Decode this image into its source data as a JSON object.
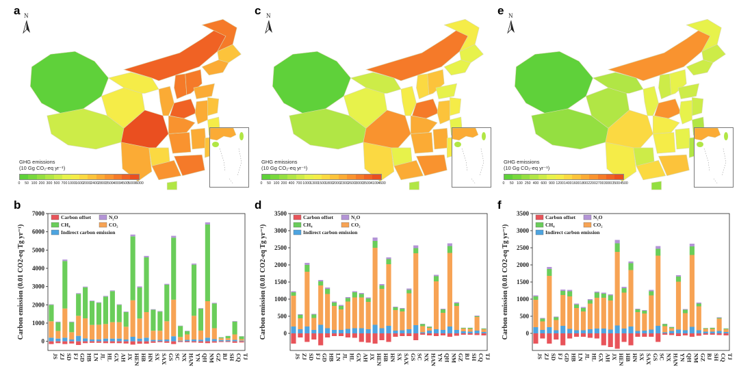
{
  "panels": {
    "a": "a",
    "b": "b",
    "c": "c",
    "d": "d",
    "e": "e",
    "f": "f"
  },
  "maps": [
    {
      "id": "a",
      "north_letter": "N",
      "legend_title_line1": "GHG emissions",
      "legend_title_line2": "(10 Gg  CO₂-eq  yr⁻¹)",
      "colorbar_ticks": [
        "0",
        "50",
        "100",
        "200",
        "300",
        "500",
        "700",
        "1000",
        "1600",
        "2000",
        "2400",
        "2800",
        "3500",
        "4000",
        "4500",
        "5000",
        "6000"
      ],
      "colorbar_colors": [
        "#5fd13a",
        "#78d83d",
        "#94df41",
        "#b1e645",
        "#cdec48",
        "#e7f24b",
        "#f5ec48",
        "#fbd942",
        "#fcc33b",
        "#fbab35",
        "#f9932f",
        "#f57a29",
        "#f06224",
        "#ea4f20"
      ]
    },
    {
      "id": "c",
      "north_letter": "N",
      "legend_title_line1": "GHG emissions",
      "legend_title_line2": "(10 Gg  CO₂-eq  yr⁻¹)",
      "colorbar_ticks": [
        "0",
        "50",
        "100",
        "200",
        "400",
        "700",
        "1000",
        "1300",
        "1500",
        "1800",
        "2000",
        "2300",
        "2600",
        "3000",
        "3500",
        "4100",
        "4600"
      ],
      "colorbar_colors": [
        "#5fd13a",
        "#78d83d",
        "#94df41",
        "#b1e645",
        "#cdec48",
        "#e7f24b",
        "#f5ec48",
        "#fbd942",
        "#fcc33b",
        "#fbab35",
        "#f9932f",
        "#f57a29",
        "#f06224",
        "#ea4f20"
      ]
    },
    {
      "id": "e",
      "north_letter": "N",
      "legend_title_line1": "GHG emissions",
      "legend_title_line2": "(10 Gg  CO₂-eq  yr⁻¹)",
      "colorbar_ticks": [
        "0",
        "50",
        "100",
        "250",
        "400",
        "600",
        "900",
        "1200",
        "1400",
        "1600",
        "1800",
        "2200",
        "2700",
        "3000",
        "3500",
        "4500"
      ],
      "colorbar_colors": [
        "#5fd13a",
        "#78d83d",
        "#94df41",
        "#b1e645",
        "#cdec48",
        "#e7f24b",
        "#f5ec48",
        "#fbd942",
        "#fcc33b",
        "#fbab35",
        "#f9932f",
        "#f57a29",
        "#f06224",
        "#ea4f20"
      ]
    }
  ],
  "legend": {
    "carbon_offset": "Carbon offset",
    "n2o": "N₂O",
    "ch4": "CH₄",
    "co2": "CO₂",
    "indirect": "Indirect carbon emission"
  },
  "colors": {
    "carbon_offset": "#e8545a",
    "n2o": "#b394d6",
    "ch4": "#6acd5a",
    "co2": "#f7a354",
    "indirect": "#4da4e0"
  },
  "chart_data": [
    {
      "type": "bar",
      "id": "b",
      "ylabel": "Carbon emission (0.01  CO2-eq Tg yr⁻¹)",
      "ylim": [
        -500,
        7000
      ],
      "yticks": [
        0,
        1000,
        2000,
        3000,
        4000,
        5000,
        6000,
        7000
      ],
      "categories": [
        "JS",
        "ZJ",
        "SD",
        "FJ",
        "GD",
        "HB",
        "LN",
        "JL",
        "HL",
        "GX",
        "AH",
        "JX",
        "HEN",
        "HB",
        "HN",
        "SX",
        "SAX",
        "GS",
        "SC",
        "NX",
        "HAN",
        "YN",
        "QH",
        "NM",
        "GZ",
        "BJ",
        "SH",
        "CQ",
        "TJ"
      ],
      "series": [
        {
          "name": "Indirect carbon emission",
          "values": [
            200,
            150,
            200,
            100,
            300,
            160,
            100,
            110,
            150,
            150,
            150,
            100,
            250,
            150,
            200,
            80,
            80,
            100,
            280,
            40,
            80,
            100,
            90,
            200,
            120,
            70,
            70,
            80,
            40
          ]
        },
        {
          "name": "CO₂",
          "values": [
            900,
            420,
            1600,
            400,
            1100,
            1100,
            800,
            800,
            800,
            900,
            900,
            700,
            2000,
            1100,
            1400,
            500,
            500,
            1000,
            2000,
            200,
            300,
            1300,
            500,
            2000,
            600,
            100,
            100,
            300,
            80
          ]
        },
        {
          "name": "CH₄",
          "values": [
            900,
            480,
            2600,
            550,
            1200,
            1700,
            1300,
            1200,
            1500,
            1700,
            950,
            800,
            3500,
            1700,
            3000,
            1150,
            1050,
            2000,
            3400,
            600,
            180,
            2800,
            1200,
            4200,
            1350,
            50,
            120,
            700,
            150
          ]
        },
        {
          "name": "N₂O",
          "values": [
            30,
            30,
            80,
            30,
            40,
            40,
            30,
            30,
            40,
            40,
            30,
            30,
            100,
            60,
            80,
            30,
            30,
            50,
            100,
            20,
            20,
            60,
            30,
            120,
            40,
            10,
            10,
            30,
            10
          ]
        },
        {
          "name": "Carbon offset",
          "values": [
            -150,
            -100,
            -150,
            -120,
            -200,
            -100,
            -80,
            -80,
            -100,
            -100,
            -100,
            -120,
            -180,
            -130,
            -130,
            -80,
            -50,
            -80,
            -150,
            -40,
            -50,
            -60,
            -80,
            -100,
            -70,
            -40,
            -40,
            -80,
            -60
          ]
        }
      ]
    },
    {
      "type": "bar",
      "id": "d",
      "ylabel": "Carbon emission (0.01  CO2-eq Tg yr⁻¹)",
      "ylim": [
        -500,
        3500
      ],
      "yticks": [
        0,
        500,
        1000,
        1500,
        2000,
        2500,
        3000,
        3500
      ],
      "categories": [
        "JS",
        "ZJ",
        "SD",
        "FJ",
        "GD",
        "HB",
        "LN",
        "JL",
        "HL",
        "GX",
        "AH",
        "JX",
        "HEN",
        "HB",
        "HN",
        "SX",
        "SAX",
        "GS",
        "SC",
        "NX",
        "HAN",
        "YN",
        "QH",
        "NM",
        "GZ",
        "BJ",
        "SH",
        "CQ",
        "TJ"
      ],
      "series": [
        {
          "name": "Indirect carbon emission",
          "values": [
            200,
            120,
            200,
            100,
            250,
            150,
            100,
            100,
            130,
            150,
            150,
            120,
            250,
            150,
            220,
            80,
            90,
            120,
            240,
            30,
            80,
            120,
            100,
            200,
            100,
            60,
            50,
            80,
            40
          ]
        },
        {
          "name": "CO₂",
          "values": [
            900,
            320,
            1600,
            350,
            1150,
            1000,
            700,
            600,
            800,
            900,
            900,
            800,
            2250,
            1150,
            1800,
            600,
            550,
            1050,
            2100,
            180,
            80,
            1400,
            500,
            2150,
            700,
            80,
            80,
            400,
            80
          ]
        },
        {
          "name": "CH₄",
          "values": [
            100,
            100,
            200,
            100,
            120,
            150,
            100,
            100,
            100,
            150,
            100,
            100,
            200,
            100,
            150,
            80,
            80,
            100,
            150,
            60,
            30,
            150,
            100,
            200,
            80,
            20,
            30,
            20,
            20
          ]
        },
        {
          "name": "N₂O",
          "values": [
            30,
            20,
            60,
            20,
            40,
            40,
            30,
            30,
            30,
            30,
            30,
            30,
            100,
            40,
            50,
            20,
            20,
            40,
            80,
            10,
            10,
            40,
            20,
            80,
            30,
            5,
            5,
            20,
            5
          ]
        },
        {
          "name": "Carbon offset",
          "values": [
            -300,
            -120,
            -250,
            -180,
            -350,
            -120,
            -80,
            -80,
            -120,
            -130,
            -250,
            -270,
            -300,
            -200,
            -250,
            -100,
            -80,
            -80,
            -200,
            -40,
            -60,
            -80,
            -60,
            -100,
            -70,
            -40,
            -40,
            -50,
            -60
          ]
        }
      ]
    },
    {
      "type": "bar",
      "id": "f",
      "ylabel": "Carbon emission (0.01  CO2-eq Tg yr⁻¹)",
      "ylim": [
        -500,
        3500
      ],
      "yticks": [
        0,
        500,
        1000,
        1500,
        2000,
        2500,
        3000,
        3500
      ],
      "categories": [
        "JS",
        "ZJ",
        "SD",
        "FJ",
        "GD",
        "HB",
        "LN",
        "JL",
        "HL",
        "GX",
        "AH",
        "JX",
        "HEN",
        "HB",
        "HN",
        "SX",
        "SAX",
        "GS",
        "SC",
        "NX",
        "HAN",
        "YN",
        "QH",
        "NM",
        "GZ",
        "BJ",
        "SH",
        "CQ",
        "TJ"
      ],
      "series": [
        {
          "name": "Indirect carbon emission",
          "values": [
            180,
            100,
            180,
            90,
            220,
            130,
            90,
            90,
            120,
            140,
            140,
            110,
            230,
            140,
            200,
            70,
            80,
            110,
            220,
            30,
            70,
            110,
            90,
            190,
            90,
            50,
            50,
            70,
            40
          ]
        },
        {
          "name": "CO₂",
          "values": [
            800,
            250,
            1500,
            300,
            900,
            950,
            650,
            550,
            750,
            900,
            900,
            850,
            2150,
            1050,
            1650,
            550,
            500,
            1000,
            2050,
            180,
            80,
            1400,
            500,
            2100,
            700,
            80,
            80,
            360,
            80
          ]
        },
        {
          "name": "CH₄",
          "values": [
            100,
            80,
            200,
            80,
            120,
            150,
            100,
            100,
            100,
            150,
            120,
            150,
            250,
            130,
            200,
            80,
            80,
            120,
            200,
            60,
            30,
            150,
            100,
            250,
            80,
            20,
            30,
            20,
            20
          ]
        },
        {
          "name": "N₂O",
          "values": [
            30,
            20,
            60,
            20,
            40,
            40,
            30,
            30,
            30,
            30,
            30,
            30,
            100,
            40,
            50,
            20,
            20,
            40,
            80,
            10,
            10,
            40,
            20,
            80,
            30,
            5,
            5,
            20,
            5
          ]
        },
        {
          "name": "Carbon offset",
          "values": [
            -300,
            -150,
            -300,
            -180,
            -350,
            -150,
            -100,
            -100,
            -130,
            -150,
            -350,
            -400,
            -450,
            -250,
            -350,
            -100,
            -100,
            -100,
            -250,
            -40,
            -50,
            -80,
            -60,
            -100,
            -70,
            -40,
            -40,
            -50,
            -60
          ]
        }
      ]
    }
  ]
}
